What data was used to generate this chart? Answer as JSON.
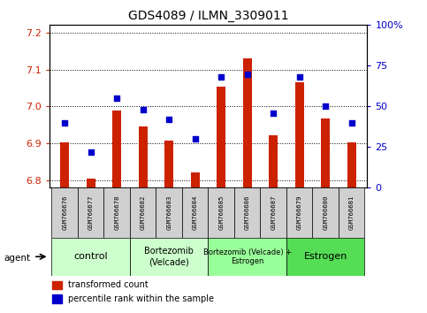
{
  "title": "GDS4089 / ILMN_3309011",
  "samples": [
    "GSM766676",
    "GSM766677",
    "GSM766678",
    "GSM766682",
    "GSM766683",
    "GSM766684",
    "GSM766685",
    "GSM766686",
    "GSM766687",
    "GSM766679",
    "GSM766680",
    "GSM766681"
  ],
  "bar_values": [
    6.902,
    6.805,
    6.988,
    6.945,
    6.907,
    6.822,
    7.053,
    7.13,
    6.922,
    7.065,
    6.968,
    6.902
  ],
  "dot_values": [
    40,
    22,
    55,
    48,
    42,
    30,
    68,
    70,
    46,
    68,
    50,
    40
  ],
  "bar_bottom": 6.78,
  "ylim_left": [
    6.78,
    7.22
  ],
  "ylim_right": [
    0,
    100
  ],
  "yticks_left": [
    6.8,
    6.9,
    7.0,
    7.1,
    7.2
  ],
  "yticks_right": [
    0,
    25,
    50,
    75,
    100
  ],
  "ytick_labels_right": [
    "0",
    "25",
    "50",
    "75",
    "100%"
  ],
  "bar_color": "#cc2200",
  "dot_color": "#0000cc",
  "group_spans": [
    {
      "start": 0,
      "end": 2,
      "label": "control",
      "color": "#ccffcc",
      "fontsize": 8
    },
    {
      "start": 3,
      "end": 5,
      "label": "Bortezomib\n(Velcade)",
      "color": "#ccffcc",
      "fontsize": 7
    },
    {
      "start": 6,
      "end": 8,
      "label": "Bortezomib (Velcade) +\nEstrogen",
      "color": "#99ff99",
      "fontsize": 6
    },
    {
      "start": 9,
      "end": 11,
      "label": "Estrogen",
      "color": "#55dd55",
      "fontsize": 8
    }
  ],
  "legend_items": [
    {
      "label": "transformed count",
      "color": "#cc2200"
    },
    {
      "label": "percentile rank within the sample",
      "color": "#0000cc"
    }
  ],
  "bar_width": 0.35,
  "tick_label_color_left": "#cc2200",
  "tick_label_color_right": "#0000cc",
  "agent_label": "agent",
  "title_fontsize": 10
}
